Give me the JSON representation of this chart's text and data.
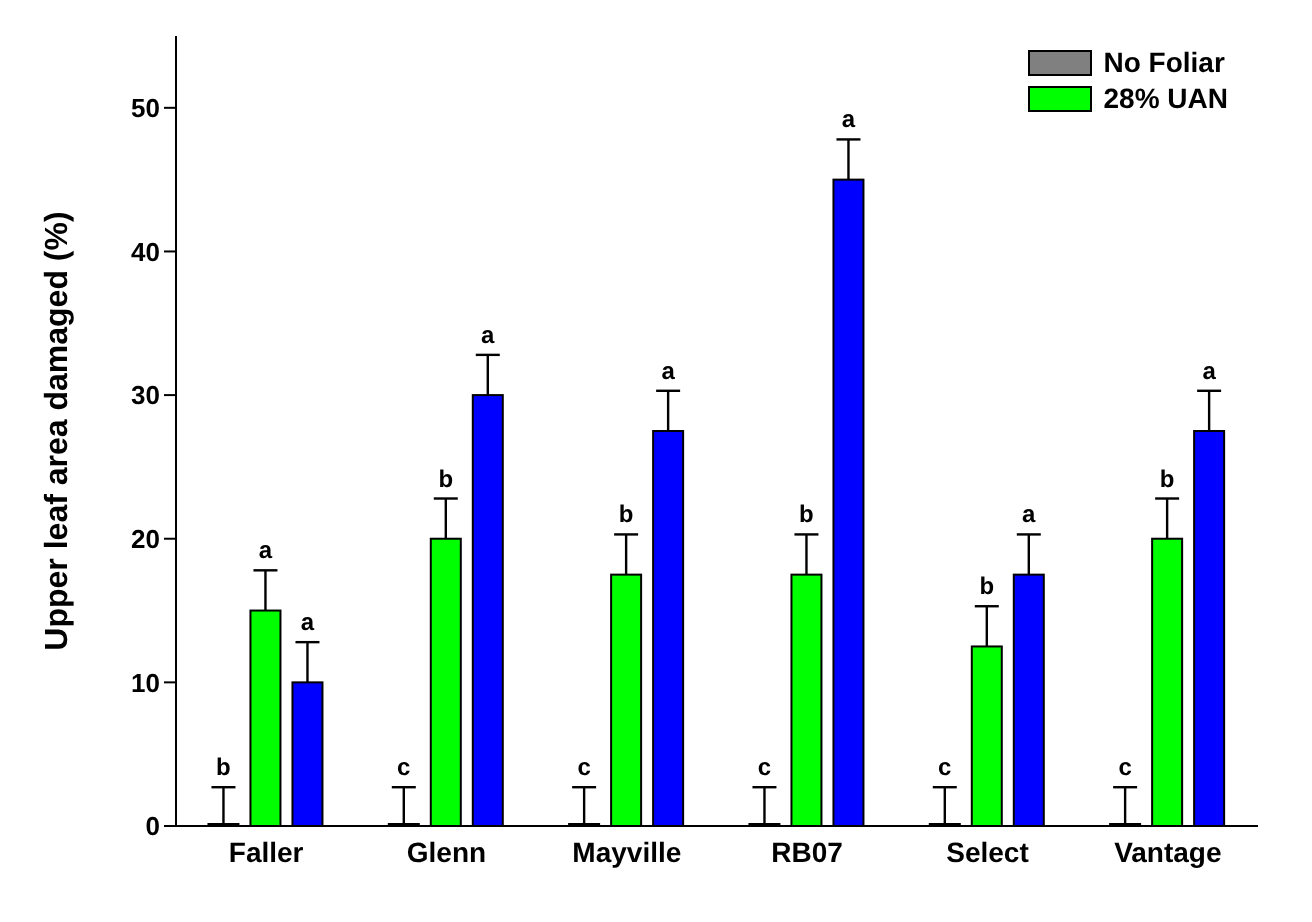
{
  "chart_data": {
    "type": "bar",
    "ylabel": "Upper leaf area damaged (%)",
    "categories": [
      "Faller",
      "Glenn",
      "Mayville",
      "RB07",
      "Select",
      "Vantage"
    ],
    "series": [
      {
        "name": "No Foliar",
        "color": "#808080",
        "values": [
          0,
          0,
          0,
          0,
          0,
          0
        ],
        "errors": [
          [
            0,
            2.7
          ],
          [
            0,
            2.7
          ],
          [
            0,
            2.7
          ],
          [
            0,
            2.7
          ],
          [
            0,
            2.7
          ],
          [
            0,
            2.7
          ]
        ],
        "value_labels": [
          "b",
          "c",
          "c",
          "c",
          "c",
          "c"
        ]
      },
      {
        "name": "28% UAN",
        "color": "#00ff00",
        "values": [
          15,
          20,
          17.5,
          17.5,
          12.5,
          20
        ],
        "errors": [
          [
            15,
            17.8
          ],
          [
            20,
            22.8
          ],
          [
            17.5,
            20.3
          ],
          [
            17.5,
            20.3
          ],
          [
            12.5,
            15.3
          ],
          [
            20,
            22.8
          ]
        ],
        "value_labels": [
          "a",
          "b",
          "b",
          "b",
          "b",
          "b"
        ]
      },
      {
        "color": "#0000ff",
        "values": [
          10,
          30,
          27.5,
          45,
          17.5,
          27.5
        ],
        "errors": [
          [
            10,
            12.8
          ],
          [
            30,
            32.8
          ],
          [
            27.5,
            30.3
          ],
          [
            45,
            47.8
          ],
          [
            17.5,
            20.3
          ],
          [
            27.5,
            30.3
          ]
        ],
        "value_labels": [
          "a",
          "a",
          "a",
          "a",
          "a",
          "a"
        ]
      }
    ],
    "ylim": [
      0,
      55
    ],
    "yticks": [
      0,
      10,
      20,
      30,
      40,
      50
    ],
    "grid": false,
    "legend": "top right"
  }
}
